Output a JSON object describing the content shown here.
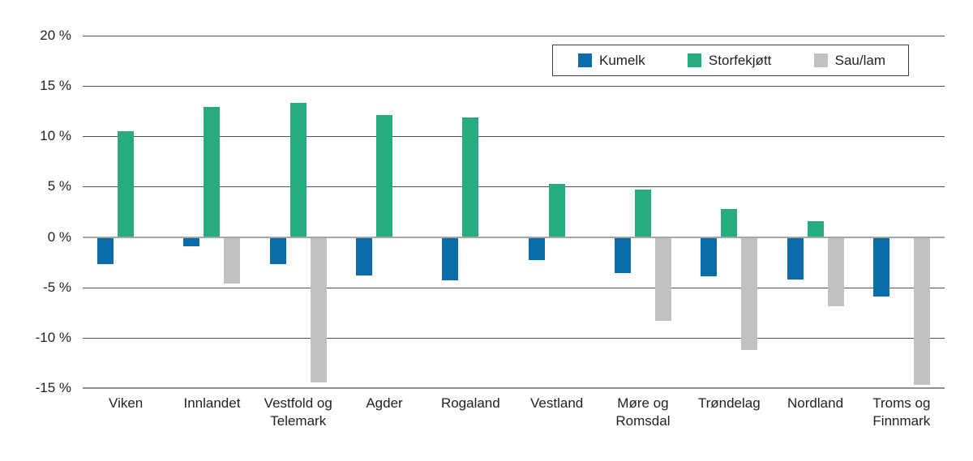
{
  "chart_data": {
    "type": "bar",
    "title": "",
    "xlabel": "",
    "ylabel": "",
    "categories": [
      "Viken",
      "Innlandet",
      "Vestfold og Telemark",
      "Agder",
      "Rogaland",
      "Vestland",
      "Møre og Romsdal",
      "Trøndelag",
      "Nordland",
      "Troms og Finnmark"
    ],
    "series": [
      {
        "name": "Kumelk",
        "color": "#0b6bab",
        "values": [
          -2.7,
          -0.9,
          -2.7,
          -3.8,
          -4.3,
          -2.3,
          -3.6,
          -3.9,
          -4.2,
          -5.9
        ]
      },
      {
        "name": "Storfekjøtt",
        "color": "#27ab7f",
        "values": [
          10.5,
          12.9,
          13.3,
          12.1,
          11.9,
          5.3,
          4.7,
          2.8,
          1.6,
          0
        ]
      },
      {
        "name": "Sau/lam",
        "color": "#c1c1c1",
        "values": [
          0,
          -4.6,
          -14.4,
          0,
          0,
          0,
          -8.3,
          -11.2,
          -6.9,
          -14.7
        ]
      }
    ],
    "y_ticks": [
      "20 %",
      "15 %",
      "10 %",
      "5 %",
      "0 %",
      "-5 %",
      "-10 %",
      "-15 %"
    ],
    "y_tick_values": [
      20,
      15,
      10,
      5,
      0,
      -5,
      -10,
      -15
    ],
    "ylim": [
      -15,
      20
    ],
    "grid": true,
    "legend_position": "top-right"
  }
}
